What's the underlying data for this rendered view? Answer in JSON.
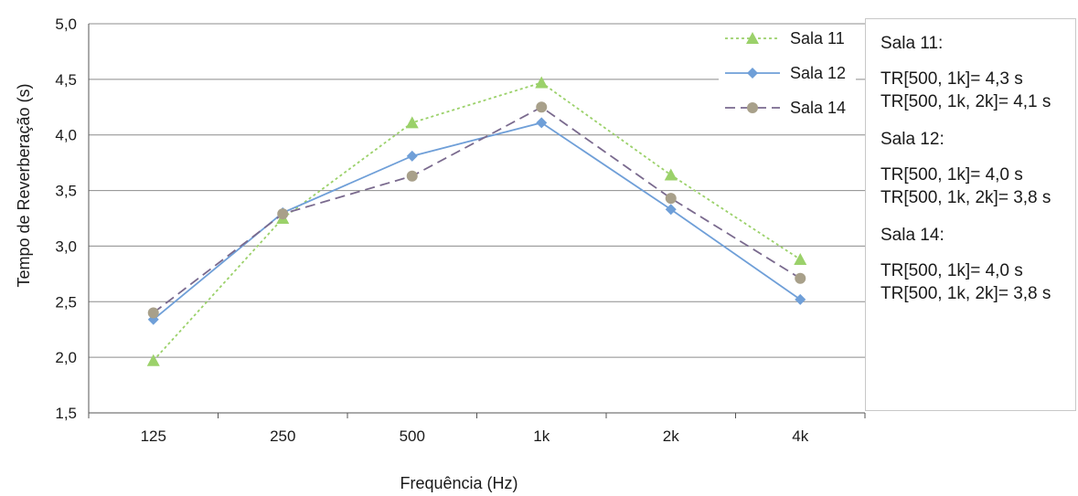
{
  "chart_data": {
    "type": "line",
    "categories": [
      "125",
      "250",
      "500",
      "1k",
      "2k",
      "4k"
    ],
    "xlabel": "Frequência (Hz)",
    "ylabel": "Tempo de Reverberação  (s)",
    "ylim": [
      1.5,
      5.0
    ],
    "ytick_values": [
      1.5,
      2.0,
      2.5,
      3.0,
      3.5,
      4.0,
      4.5,
      5.0
    ],
    "ytick_labels": [
      "1,5",
      "2,0",
      "2,5",
      "3,0",
      "3,5",
      "4,0",
      "4,5",
      "5,0"
    ],
    "grid": "horizontal",
    "legend_position": "top-right",
    "series": [
      {
        "name": "Sala 11",
        "values": [
          1.97,
          3.25,
          4.11,
          4.47,
          3.64,
          2.88
        ],
        "color": "#9bd16a",
        "line_style": "dotted",
        "marker": "triangle"
      },
      {
        "name": "Sala 12",
        "values": [
          2.34,
          3.3,
          3.81,
          4.11,
          3.33,
          2.52
        ],
        "color": "#6f9fd8",
        "line_style": "solid",
        "marker": "diamond"
      },
      {
        "name": "Sala 14",
        "values": [
          2.4,
          3.29,
          3.63,
          4.25,
          3.43,
          2.71
        ],
        "color": "#7a6a8e",
        "marker_color": "#a8a08a",
        "line_style": "dashed",
        "marker": "circle"
      }
    ]
  },
  "notes": [
    {
      "title": "Sala 11:",
      "lines": [
        "TR[500, 1k]= 4,3 s",
        "TR[500, 1k, 2k]= 4,1 s"
      ]
    },
    {
      "title": "Sala 12:",
      "lines": [
        "TR[500, 1k]= 4,0 s",
        "TR[500, 1k, 2k]= 3,8 s"
      ]
    },
    {
      "title": "Sala 14:",
      "lines": [
        "TR[500, 1k]= 4,0 s",
        "TR[500, 1k, 2k]= 3,8 s"
      ]
    }
  ]
}
